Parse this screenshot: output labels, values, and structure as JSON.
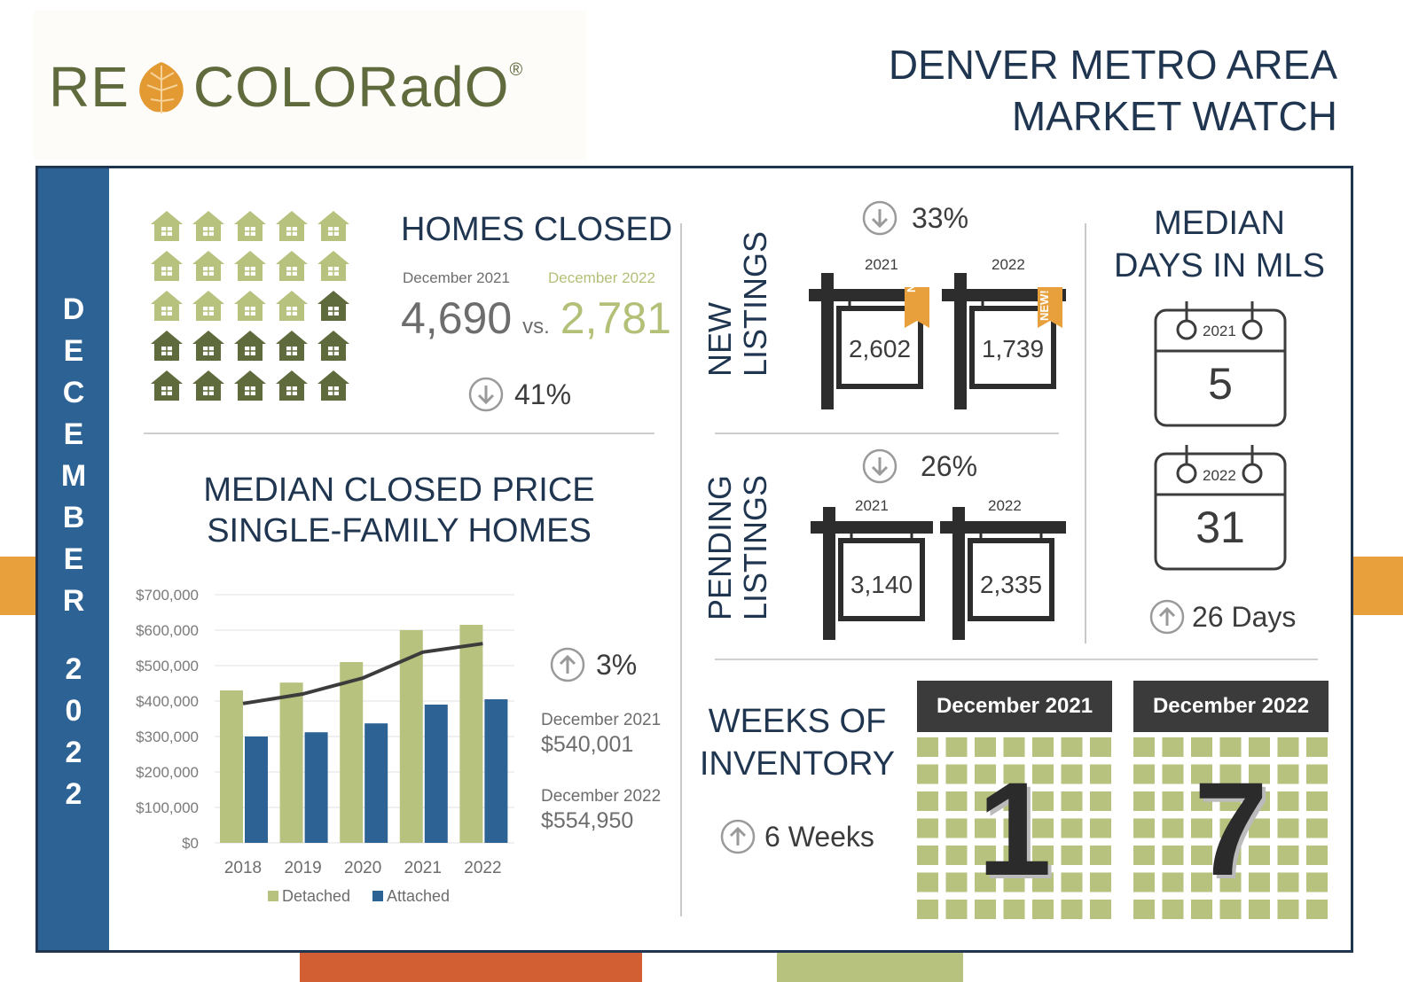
{
  "header": {
    "logo_left": "RE",
    "logo_right": "COLORadO",
    "logo_reg": "®",
    "title_line1": "DENVER METRO AREA",
    "title_line2": "MARKET WATCH"
  },
  "sidebar": {
    "month_letters": [
      "D",
      "E",
      "C",
      "E",
      "M",
      "B",
      "E",
      "R"
    ],
    "year_digits": [
      "2",
      "0",
      "2",
      "2"
    ]
  },
  "homes_closed": {
    "title": "HOMES CLOSED",
    "label_2021": "December 2021",
    "label_2022": "December 2022",
    "value_2021": "4,690",
    "vs": "vs.",
    "value_2022": "2,781",
    "change": "41%",
    "direction": "down",
    "icons_light": 14,
    "icons_dark": 11
  },
  "new_listings": {
    "title_line1": "NEW",
    "title_line2": "LISTINGS",
    "change": "33%",
    "direction": "down",
    "year1": "2021",
    "year2": "2022",
    "value1": "2,602",
    "value2": "1,739",
    "tag": "NEW!"
  },
  "pending_listings": {
    "title_line1": "PENDING",
    "title_line2": "LISTINGS",
    "change": "26%",
    "direction": "down",
    "year1": "2021",
    "year2": "2022",
    "value1": "3,140",
    "value2": "2,335"
  },
  "days_in_mls": {
    "title_line1": "MEDIAN",
    "title_line2": "DAYS IN MLS",
    "year1": "2021",
    "value1": "5",
    "year2": "2022",
    "value2": "31",
    "change": "26 Days",
    "direction": "up"
  },
  "median_price": {
    "title_line1": "MEDIAN CLOSED PRICE",
    "title_line2": "SINGLE-FAMILY HOMES",
    "change": "3%",
    "direction": "up",
    "label_2021": "December 2021",
    "value_2021": "$540,001",
    "label_2022": "December 2022",
    "value_2022": "$554,950"
  },
  "weeks_inventory": {
    "title_line1": "WEEKS OF",
    "title_line2": "INVENTORY",
    "change": "6 Weeks",
    "direction": "up",
    "label_2021": "December 2021",
    "value_2021": "1",
    "label_2022": "December 2022",
    "value_2022": "7"
  },
  "colors": {
    "navy": "#1f3550",
    "blue": "#2d6295",
    "green": "#b6c27d",
    "dark_green": "#5f6b3c",
    "orange": "#e8a03c",
    "red": "#d15f33"
  },
  "chart_data": {
    "type": "bar",
    "categories": [
      "2018",
      "2019",
      "2020",
      "2021",
      "2022"
    ],
    "series": [
      {
        "name": "Detached",
        "values": [
          430000,
          452000,
          510000,
          600000,
          615000
        ],
        "color": "#b6c27d"
      },
      {
        "name": "Attached",
        "values": [
          300000,
          312000,
          337000,
          390000,
          405000
        ],
        "color": "#2d6295"
      }
    ],
    "line": {
      "values": [
        393000,
        420000,
        465000,
        538000,
        562000
      ],
      "color": "#3c3c3c"
    },
    "ylim": [
      0,
      700000
    ],
    "yticks": [
      "$0",
      "$100,000",
      "$200,000",
      "$300,000",
      "$400,000",
      "$500,000",
      "$600,000",
      "$700,000"
    ],
    "legend": "bottom",
    "grid": true
  }
}
